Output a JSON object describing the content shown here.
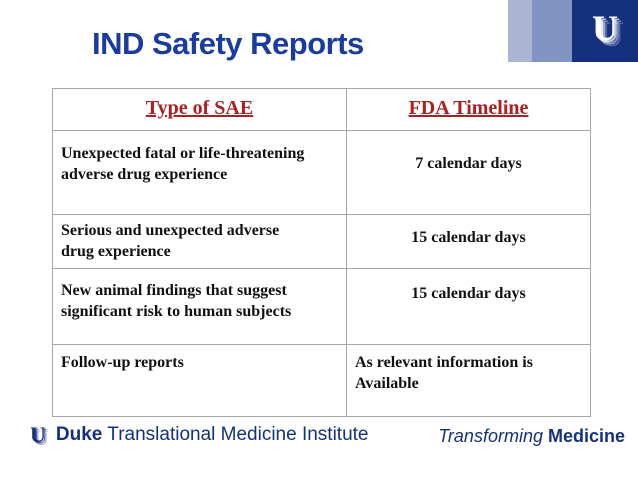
{
  "slide": {
    "title": "IND Safety Reports"
  },
  "table": {
    "headers": {
      "type": "Type of SAE",
      "timeline": "FDA Timeline"
    },
    "rows": [
      {
        "type": "Unexpected fatal or life-threatening adverse drug experience",
        "timeline": "7 calendar days"
      },
      {
        "type": "Serious and unexpected adverse drug experience",
        "timeline": "15 calendar days"
      },
      {
        "type": "New animal findings that suggest significant risk to human subjects",
        "timeline": "15 calendar days"
      },
      {
        "type": "Follow-up reports",
        "timeline": "As relevant information is Available"
      }
    ]
  },
  "footer": {
    "brand_bold": "Duke",
    "brand_rest": " Translational Medicine Institute",
    "tagline_italic": "Transforming",
    "tagline_bold": " Medicine"
  },
  "icons": {
    "duke_shield_glyph": "U"
  },
  "colors": {
    "title_blue": "#1a3c9e",
    "header_red": "#ac1f23",
    "duke_navy": "#15317e",
    "logo_band_light": "#a9b5d2",
    "logo_band_mid": "#8294c2",
    "logo_band_dark": "#14307f",
    "table_border": "#a6a6a6"
  }
}
